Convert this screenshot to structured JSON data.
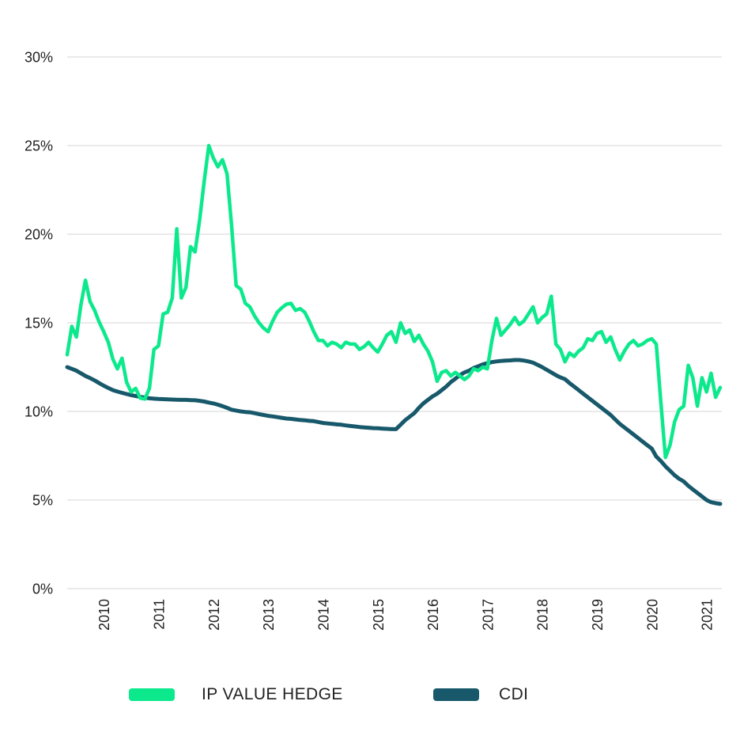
{
  "chart_data": {
    "type": "line",
    "title": "",
    "xlabel": "",
    "ylabel": "",
    "ylim": [
      0,
      30
    ],
    "grid": "horizontal",
    "legend_position": "bottom",
    "x_resolution": "monthly",
    "colors": {
      "grid": "#E3E3E3",
      "axis_text": "#222222",
      "background": "#FFFFFF"
    },
    "y_tick_values": [
      30,
      25,
      20,
      15,
      10,
      5,
      0
    ],
    "y_tick_labels": [
      "30%",
      "25%",
      "20%",
      "15%",
      "10%",
      "5%",
      "0%"
    ],
    "x_ticks": [
      {
        "label": "2010",
        "index": 8
      },
      {
        "label": "2011",
        "index": 20
      },
      {
        "label": "2012",
        "index": 32
      },
      {
        "label": "2013",
        "index": 44
      },
      {
        "label": "2014",
        "index": 56
      },
      {
        "label": "2015",
        "index": 68
      },
      {
        "label": "2016",
        "index": 80
      },
      {
        "label": "2017",
        "index": 92
      },
      {
        "label": "2018",
        "index": 104
      },
      {
        "label": "2019",
        "index": 116
      },
      {
        "label": "2020",
        "index": 128
      },
      {
        "label": "2021",
        "index": 140
      }
    ],
    "series": [
      {
        "id": "ip-value-hedge",
        "name": "IP VALUE HEDGE",
        "color": "#0CE98C",
        "stroke_width": 4.5,
        "values": [
          13.2,
          14.8,
          14.2,
          16.0,
          17.4,
          16.2,
          15.7,
          15.05,
          14.5,
          13.9,
          12.95,
          12.4,
          13.0,
          11.65,
          11.1,
          11.3,
          10.75,
          10.7,
          11.3,
          13.5,
          13.7,
          15.5,
          15.6,
          16.4,
          20.3,
          16.4,
          17.0,
          19.3,
          19.0,
          20.8,
          23.0,
          25.0,
          24.3,
          23.8,
          24.2,
          23.4,
          20.5,
          17.1,
          16.9,
          16.1,
          15.9,
          15.4,
          15.0,
          14.7,
          14.5,
          15.1,
          15.6,
          15.85,
          16.05,
          16.1,
          15.7,
          15.8,
          15.6,
          15.1,
          14.5,
          14.0,
          14.0,
          13.7,
          13.9,
          13.8,
          13.6,
          13.9,
          13.8,
          13.8,
          13.5,
          13.65,
          13.9,
          13.6,
          13.35,
          13.8,
          14.3,
          14.5,
          13.9,
          15.0,
          14.4,
          14.6,
          13.95,
          14.3,
          13.8,
          13.4,
          12.8,
          11.7,
          12.2,
          12.3,
          12.0,
          12.2,
          12.0,
          11.8,
          12.0,
          12.4,
          12.3,
          12.5,
          12.4,
          14.0,
          15.25,
          14.3,
          14.6,
          14.9,
          15.3,
          14.9,
          15.1,
          15.5,
          15.9,
          15.0,
          15.3,
          15.5,
          16.5,
          13.8,
          13.5,
          12.8,
          13.3,
          13.1,
          13.4,
          13.6,
          14.1,
          14.0,
          14.4,
          14.5,
          13.9,
          14.2,
          13.5,
          12.9,
          13.4,
          13.8,
          14.0,
          13.7,
          13.8,
          14.0,
          14.1,
          13.8,
          10.5,
          7.4,
          8.1,
          9.4,
          10.1,
          10.3,
          12.6,
          11.9,
          10.3,
          11.9,
          11.1,
          12.15,
          10.8,
          11.35
        ]
      },
      {
        "id": "cdi",
        "name": "CDI",
        "color": "#17596B",
        "stroke_width": 5,
        "values": [
          12.5,
          12.4,
          12.3,
          12.15,
          12.0,
          11.88,
          11.75,
          11.6,
          11.45,
          11.32,
          11.2,
          11.12,
          11.05,
          10.98,
          10.92,
          10.87,
          10.82,
          10.78,
          10.74,
          10.72,
          10.7,
          10.69,
          10.68,
          10.67,
          10.66,
          10.65,
          10.65,
          10.64,
          10.63,
          10.6,
          10.56,
          10.5,
          10.45,
          10.38,
          10.3,
          10.2,
          10.1,
          10.05,
          10.0,
          9.97,
          9.95,
          9.9,
          9.85,
          9.8,
          9.75,
          9.72,
          9.68,
          9.64,
          9.6,
          9.58,
          9.55,
          9.52,
          9.5,
          9.47,
          9.45,
          9.4,
          9.35,
          9.32,
          9.3,
          9.27,
          9.25,
          9.21,
          9.18,
          9.15,
          9.12,
          9.1,
          9.08,
          9.06,
          9.05,
          9.03,
          9.02,
          9.0,
          9.0,
          9.25,
          9.5,
          9.7,
          9.9,
          10.2,
          10.45,
          10.65,
          10.85,
          11.0,
          11.2,
          11.4,
          11.65,
          11.85,
          12.05,
          12.2,
          12.3,
          12.45,
          12.55,
          12.65,
          12.72,
          12.78,
          12.82,
          12.85,
          12.87,
          12.88,
          12.9,
          12.9,
          12.87,
          12.82,
          12.75,
          12.63,
          12.5,
          12.35,
          12.2,
          12.05,
          11.92,
          11.82,
          11.6,
          11.4,
          11.2,
          11.0,
          10.8,
          10.6,
          10.4,
          10.2,
          10.0,
          9.8,
          9.55,
          9.3,
          9.1,
          8.9,
          8.7,
          8.5,
          8.3,
          8.1,
          7.9,
          7.45,
          7.2,
          6.9,
          6.65,
          6.4,
          6.2,
          6.05,
          5.8,
          5.6,
          5.4,
          5.2,
          5.0,
          4.88,
          4.82,
          4.78
        ]
      }
    ]
  },
  "legend": {
    "items": [
      {
        "label": "IP VALUE HEDGE",
        "color": "#0CE98C"
      },
      {
        "label": "CDI",
        "color": "#17596B"
      }
    ]
  }
}
